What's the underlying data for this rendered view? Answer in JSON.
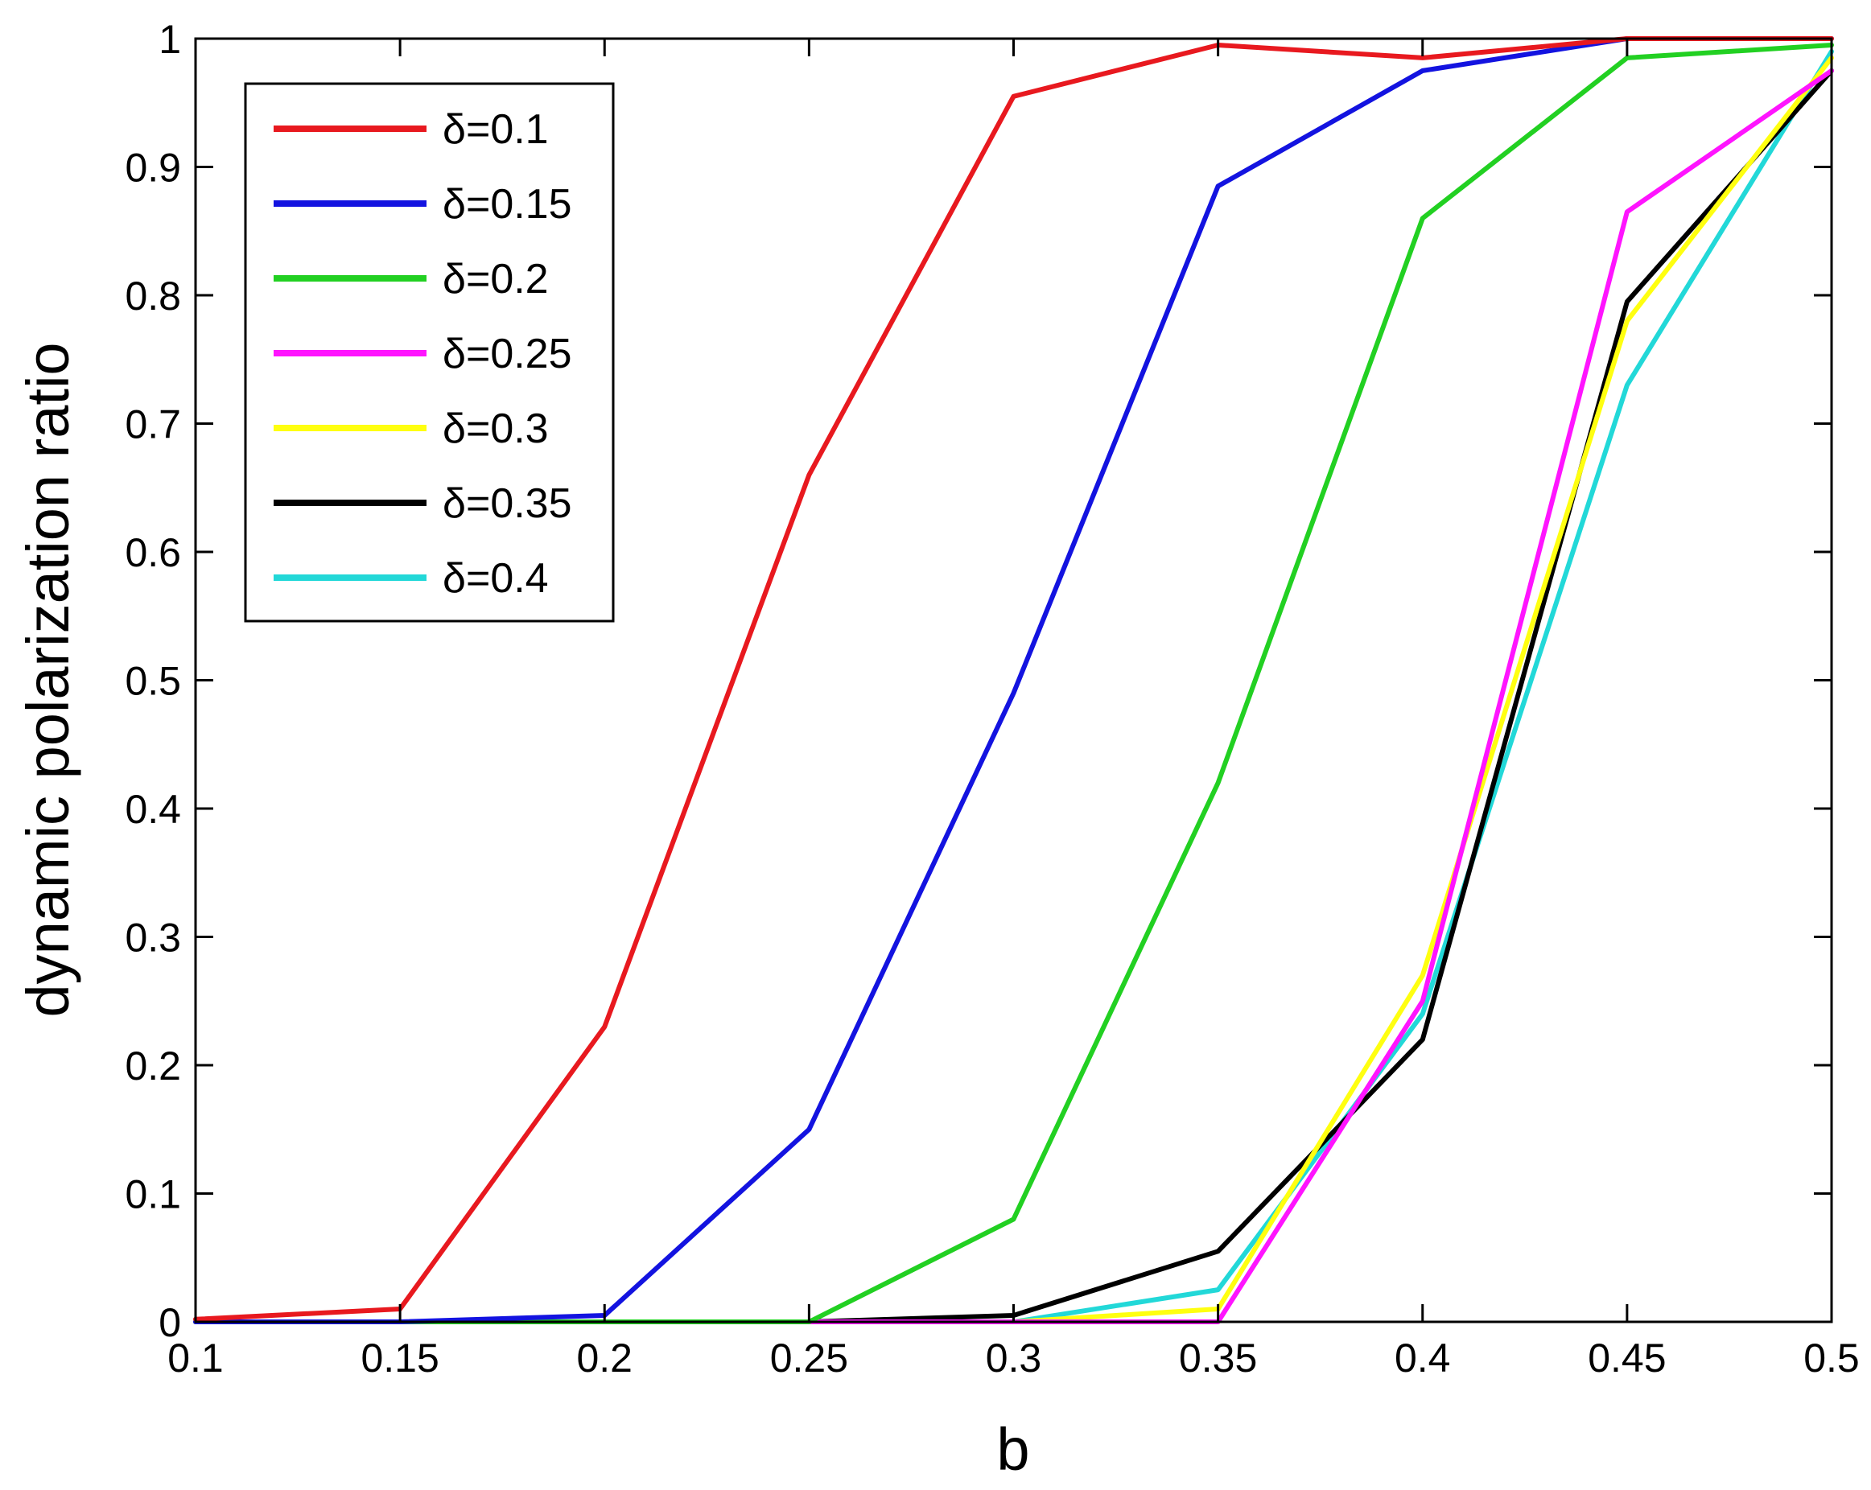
{
  "chart_data": {
    "type": "line",
    "title": "",
    "xlabel": "b",
    "ylabel": "dynamic polarization ratio",
    "xlim": [
      0.1,
      0.5
    ],
    "ylim": [
      0,
      1
    ],
    "x": [
      0.1,
      0.15,
      0.2,
      0.25,
      0.3,
      0.35,
      0.4,
      0.45,
      0.5
    ],
    "xticks": [
      "0.1",
      "0.15",
      "0.2",
      "0.25",
      "0.3",
      "0.35",
      "0.4",
      "0.45",
      "0.5"
    ],
    "yticks": [
      "0",
      "0.1",
      "0.2",
      "0.3",
      "0.4",
      "0.5",
      "0.6",
      "0.7",
      "0.8",
      "0.9",
      "1"
    ],
    "grid": false,
    "legend_position": "top-left",
    "series": [
      {
        "name": "δ=0.1",
        "color": "#e8191f",
        "values": [
          0.002,
          0.01,
          0.23,
          0.66,
          0.955,
          0.995,
          0.985,
          1.0,
          1.0
        ]
      },
      {
        "name": "δ=0.15",
        "color": "#1313e0",
        "values": [
          0,
          0,
          0.005,
          0.15,
          0.49,
          0.885,
          0.975,
          1.0,
          1.0
        ]
      },
      {
        "name": "δ=0.2",
        "color": "#22d022",
        "values": [
          0,
          0,
          0,
          0,
          0.08,
          0.42,
          0.86,
          0.985,
          0.995
        ]
      },
      {
        "name": "δ=0.25",
        "color": "#ff14ff",
        "values": [
          0,
          0,
          0,
          0,
          0,
          0,
          0.25,
          0.865,
          0.975
        ]
      },
      {
        "name": "δ=0.3",
        "color": "#ffff10",
        "values": [
          0,
          0,
          0,
          0,
          0,
          0.01,
          0.27,
          0.78,
          0.985
        ]
      },
      {
        "name": "δ=0.35",
        "color": "#000000",
        "values": [
          0,
          0,
          0,
          0,
          0.005,
          0.055,
          0.22,
          0.795,
          0.975
        ]
      },
      {
        "name": "δ=0.4",
        "color": "#22d8d8",
        "values": [
          0,
          0,
          0,
          0,
          0,
          0.025,
          0.24,
          0.73,
          0.99
        ]
      }
    ]
  }
}
